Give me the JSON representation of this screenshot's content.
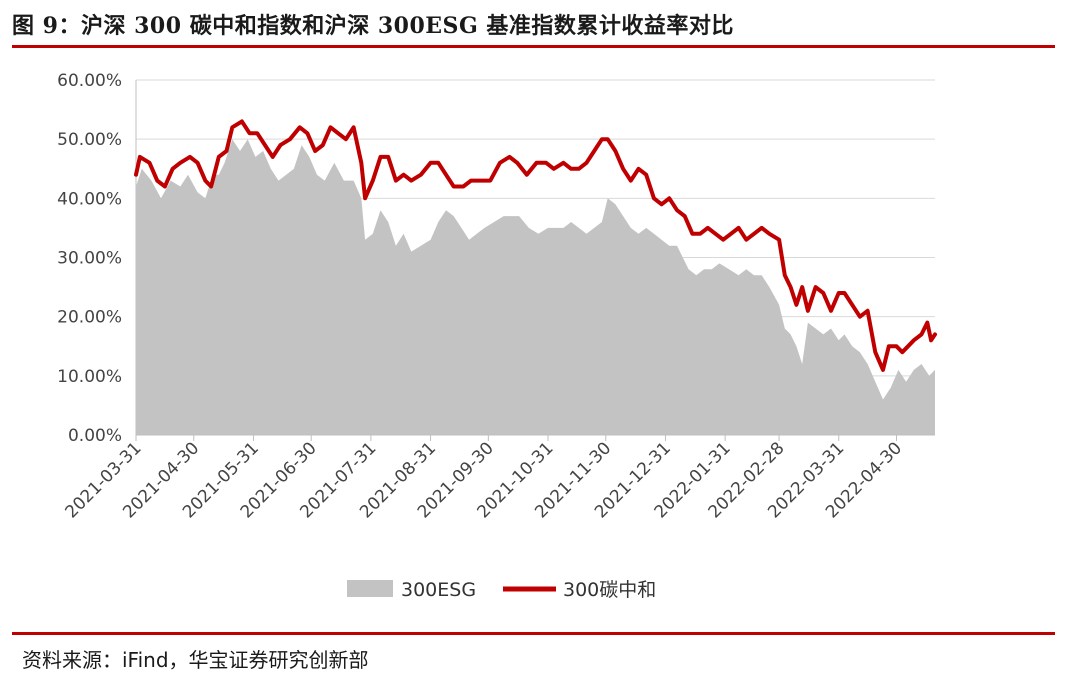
{
  "figure_title": "图 9：沪深 300 碳中和指数和沪深 300ESG 基准指数累计收益率对比",
  "source": "资料来源：iFind，华宝证券研究创新部",
  "colors": {
    "esg": "#c3c3c3",
    "carbon": "#c00000",
    "rule": "#c00000"
  },
  "chart_data": {
    "type": "area",
    "ylim": [
      0,
      60
    ],
    "y_ticks": [
      "0.00%",
      "10.00%",
      "20.00%",
      "30.00%",
      "40.00%",
      "50.00%",
      "60.00%"
    ],
    "y_tick_values": [
      0,
      10,
      20,
      30,
      40,
      50,
      60
    ],
    "x_ticks": [
      "2021-03-31",
      "2021-04-30",
      "2021-05-31",
      "2021-06-30",
      "2021-07-31",
      "2021-08-31",
      "2021-09-30",
      "2021-10-31",
      "2021-11-30",
      "2021-12-31",
      "2022-01-31",
      "2022-02-28",
      "2022-03-31",
      "2022-04-30"
    ],
    "x_start": "2021-03-31",
    "x_end": "2022-05-20",
    "legend_position": "bottom",
    "series": [
      {
        "name": "300ESG",
        "style": "area",
        "points": [
          [
            "2021-03-31",
            42
          ],
          [
            "2021-04-03",
            45
          ],
          [
            "2021-04-08",
            43
          ],
          [
            "2021-04-13",
            40
          ],
          [
            "2021-04-18",
            43
          ],
          [
            "2021-04-23",
            42
          ],
          [
            "2021-04-27",
            44
          ],
          [
            "2021-05-02",
            41
          ],
          [
            "2021-05-06",
            40
          ],
          [
            "2021-05-10",
            44
          ],
          [
            "2021-05-13",
            44
          ],
          [
            "2021-05-16",
            46
          ],
          [
            "2021-05-20",
            50
          ],
          [
            "2021-05-24",
            48
          ],
          [
            "2021-05-28",
            50
          ],
          [
            "2021-06-01",
            47
          ],
          [
            "2021-06-05",
            48
          ],
          [
            "2021-06-09",
            45
          ],
          [
            "2021-06-13",
            43
          ],
          [
            "2021-06-17",
            44
          ],
          [
            "2021-06-21",
            45
          ],
          [
            "2021-06-25",
            49
          ],
          [
            "2021-06-29",
            47
          ],
          [
            "2021-07-03",
            44
          ],
          [
            "2021-07-07",
            43
          ],
          [
            "2021-07-12",
            46
          ],
          [
            "2021-07-17",
            43
          ],
          [
            "2021-07-22",
            43
          ],
          [
            "2021-07-26",
            40
          ],
          [
            "2021-07-28",
            33
          ],
          [
            "2021-08-01",
            34
          ],
          [
            "2021-08-05",
            38
          ],
          [
            "2021-08-09",
            36
          ],
          [
            "2021-08-13",
            32
          ],
          [
            "2021-08-17",
            34
          ],
          [
            "2021-08-21",
            31
          ],
          [
            "2021-08-26",
            32
          ],
          [
            "2021-08-31",
            33
          ],
          [
            "2021-09-04",
            36
          ],
          [
            "2021-09-08",
            38
          ],
          [
            "2021-09-12",
            37
          ],
          [
            "2021-09-16",
            35
          ],
          [
            "2021-09-20",
            33
          ],
          [
            "2021-09-24",
            34
          ],
          [
            "2021-09-28",
            35
          ],
          [
            "2021-10-03",
            36
          ],
          [
            "2021-10-08",
            37
          ],
          [
            "2021-10-12",
            37
          ],
          [
            "2021-10-16",
            37
          ],
          [
            "2021-10-21",
            35
          ],
          [
            "2021-10-26",
            34
          ],
          [
            "2021-10-31",
            35
          ],
          [
            "2021-11-04",
            35
          ],
          [
            "2021-11-08",
            35
          ],
          [
            "2021-11-12",
            36
          ],
          [
            "2021-11-16",
            35
          ],
          [
            "2021-11-20",
            34
          ],
          [
            "2021-11-24",
            35
          ],
          [
            "2021-11-28",
            36
          ],
          [
            "2021-12-01",
            40
          ],
          [
            "2021-12-05",
            39
          ],
          [
            "2021-12-09",
            37
          ],
          [
            "2021-12-13",
            35
          ],
          [
            "2021-12-17",
            34
          ],
          [
            "2021-12-21",
            35
          ],
          [
            "2021-12-25",
            34
          ],
          [
            "2021-12-29",
            33
          ],
          [
            "2022-01-02",
            32
          ],
          [
            "2022-01-06",
            32
          ],
          [
            "2022-01-09",
            30
          ],
          [
            "2022-01-12",
            28
          ],
          [
            "2022-01-16",
            27
          ],
          [
            "2022-01-20",
            28
          ],
          [
            "2022-01-24",
            28
          ],
          [
            "2022-01-28",
            29
          ],
          [
            "2022-02-02",
            28
          ],
          [
            "2022-02-07",
            27
          ],
          [
            "2022-02-11",
            28
          ],
          [
            "2022-02-15",
            27
          ],
          [
            "2022-02-19",
            27
          ],
          [
            "2022-02-23",
            25
          ],
          [
            "2022-02-28",
            22
          ],
          [
            "2022-03-03",
            18
          ],
          [
            "2022-03-06",
            17
          ],
          [
            "2022-03-09",
            15
          ],
          [
            "2022-03-12",
            12
          ],
          [
            "2022-03-15",
            19
          ],
          [
            "2022-03-19",
            18
          ],
          [
            "2022-03-23",
            17
          ],
          [
            "2022-03-27",
            18
          ],
          [
            "2022-03-31",
            16
          ],
          [
            "2022-04-03",
            17
          ],
          [
            "2022-04-07",
            15
          ],
          [
            "2022-04-11",
            14
          ],
          [
            "2022-04-15",
            12
          ],
          [
            "2022-04-19",
            9
          ],
          [
            "2022-04-23",
            6
          ],
          [
            "2022-04-27",
            8
          ],
          [
            "2022-05-01",
            11
          ],
          [
            "2022-05-05",
            9
          ],
          [
            "2022-05-09",
            11
          ],
          [
            "2022-05-13",
            12
          ],
          [
            "2022-05-17",
            10
          ],
          [
            "2022-05-20",
            11
          ]
        ]
      },
      {
        "name": "300碳中和",
        "style": "line",
        "points": [
          [
            "2021-03-31",
            44
          ],
          [
            "2021-04-02",
            47
          ],
          [
            "2021-04-07",
            46
          ],
          [
            "2021-04-11",
            43
          ],
          [
            "2021-04-15",
            42
          ],
          [
            "2021-04-19",
            45
          ],
          [
            "2021-04-23",
            46
          ],
          [
            "2021-04-28",
            47
          ],
          [
            "2021-05-02",
            46
          ],
          [
            "2021-05-06",
            43
          ],
          [
            "2021-05-09",
            42
          ],
          [
            "2021-05-13",
            47
          ],
          [
            "2021-05-17",
            48
          ],
          [
            "2021-05-20",
            52
          ],
          [
            "2021-05-25",
            53
          ],
          [
            "2021-05-29",
            51
          ],
          [
            "2021-06-02",
            51
          ],
          [
            "2021-06-06",
            49
          ],
          [
            "2021-06-10",
            47
          ],
          [
            "2021-06-14",
            49
          ],
          [
            "2021-06-19",
            50
          ],
          [
            "2021-06-24",
            52
          ],
          [
            "2021-06-28",
            51
          ],
          [
            "2021-07-02",
            48
          ],
          [
            "2021-07-06",
            49
          ],
          [
            "2021-07-10",
            52
          ],
          [
            "2021-07-14",
            51
          ],
          [
            "2021-07-18",
            50
          ],
          [
            "2021-07-22",
            52
          ],
          [
            "2021-07-26",
            46
          ],
          [
            "2021-07-28",
            40
          ],
          [
            "2021-08-01",
            43
          ],
          [
            "2021-08-05",
            47
          ],
          [
            "2021-08-09",
            47
          ],
          [
            "2021-08-13",
            43
          ],
          [
            "2021-08-17",
            44
          ],
          [
            "2021-08-21",
            43
          ],
          [
            "2021-08-26",
            44
          ],
          [
            "2021-08-31",
            46
          ],
          [
            "2021-09-04",
            46
          ],
          [
            "2021-09-08",
            44
          ],
          [
            "2021-09-12",
            42
          ],
          [
            "2021-09-17",
            42
          ],
          [
            "2021-09-21",
            43
          ],
          [
            "2021-09-26",
            43
          ],
          [
            "2021-10-01",
            43
          ],
          [
            "2021-10-06",
            46
          ],
          [
            "2021-10-11",
            47
          ],
          [
            "2021-10-15",
            46
          ],
          [
            "2021-10-20",
            44
          ],
          [
            "2021-10-25",
            46
          ],
          [
            "2021-10-30",
            46
          ],
          [
            "2021-11-03",
            45
          ],
          [
            "2021-11-08",
            46
          ],
          [
            "2021-11-12",
            45
          ],
          [
            "2021-11-16",
            45
          ],
          [
            "2021-11-20",
            46
          ],
          [
            "2021-11-24",
            48
          ],
          [
            "2021-11-28",
            50
          ],
          [
            "2021-12-01",
            50
          ],
          [
            "2021-12-05",
            48
          ],
          [
            "2021-12-09",
            45
          ],
          [
            "2021-12-13",
            43
          ],
          [
            "2021-12-17",
            45
          ],
          [
            "2021-12-21",
            44
          ],
          [
            "2021-12-25",
            40
          ],
          [
            "2021-12-29",
            39
          ],
          [
            "2022-01-02",
            40
          ],
          [
            "2022-01-06",
            38
          ],
          [
            "2022-01-10",
            37
          ],
          [
            "2022-01-14",
            34
          ],
          [
            "2022-01-18",
            34
          ],
          [
            "2022-01-22",
            35
          ],
          [
            "2022-01-26",
            34
          ],
          [
            "2022-01-30",
            33
          ],
          [
            "2022-02-03",
            34
          ],
          [
            "2022-02-07",
            35
          ],
          [
            "2022-02-11",
            33
          ],
          [
            "2022-02-15",
            34
          ],
          [
            "2022-02-19",
            35
          ],
          [
            "2022-02-23",
            34
          ],
          [
            "2022-02-28",
            33
          ],
          [
            "2022-03-03",
            27
          ],
          [
            "2022-03-06",
            25
          ],
          [
            "2022-03-09",
            22
          ],
          [
            "2022-03-12",
            25
          ],
          [
            "2022-03-15",
            21
          ],
          [
            "2022-03-19",
            25
          ],
          [
            "2022-03-23",
            24
          ],
          [
            "2022-03-27",
            21
          ],
          [
            "2022-03-31",
            24
          ],
          [
            "2022-04-03",
            24
          ],
          [
            "2022-04-07",
            22
          ],
          [
            "2022-04-11",
            20
          ],
          [
            "2022-04-15",
            21
          ],
          [
            "2022-04-19",
            14
          ],
          [
            "2022-04-23",
            11
          ],
          [
            "2022-04-26",
            15
          ],
          [
            "2022-04-30",
            15
          ],
          [
            "2022-05-03",
            14
          ],
          [
            "2022-05-06",
            15
          ],
          [
            "2022-05-09",
            16
          ],
          [
            "2022-05-13",
            17
          ],
          [
            "2022-05-16",
            19
          ],
          [
            "2022-05-18",
            16
          ],
          [
            "2022-05-20",
            17
          ]
        ]
      }
    ]
  }
}
